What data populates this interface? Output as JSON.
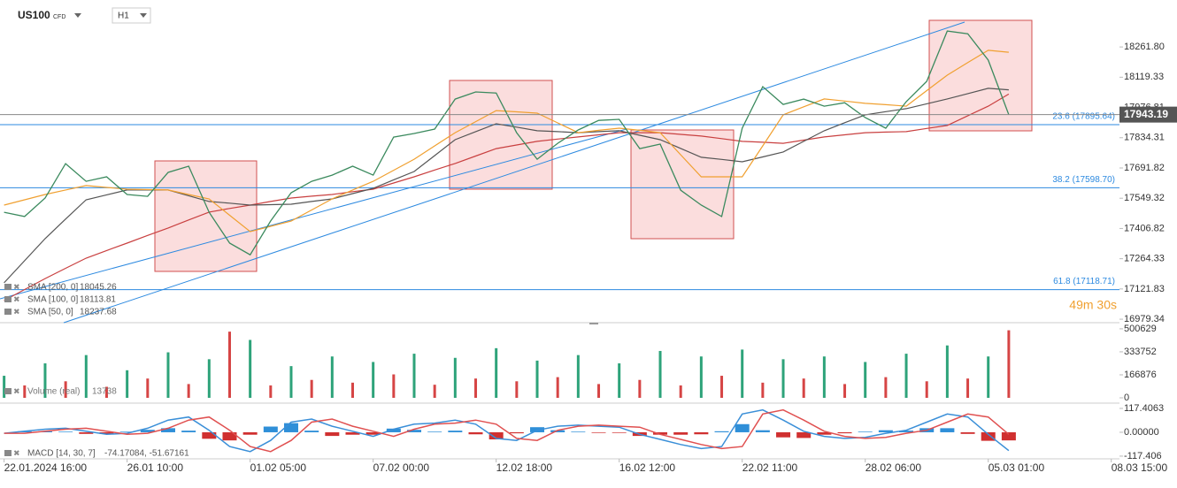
{
  "header": {
    "symbol": "US100",
    "symbol_type": "CFD",
    "timeframe": "H1"
  },
  "chart_data": [
    {
      "type": "line",
      "x": [
        0,
        15,
        30,
        45,
        60,
        75,
        90,
        105,
        120,
        135,
        150,
        165,
        180,
        195,
        210,
        225,
        240,
        255,
        270,
        285,
        300,
        315,
        330,
        345,
        360,
        375,
        390,
        405,
        420,
        435,
        450,
        465,
        480,
        495,
        510,
        525,
        540,
        555,
        570,
        585,
        600,
        615,
        630,
        645,
        660,
        675,
        690,
        705,
        720,
        735
      ],
      "xlim": [
        -3,
        816
      ],
      "xticks": [
        {
          "value": 0,
          "label": "22.01.2024 16:00"
        },
        {
          "value": 90,
          "label": "26.01 10:00"
        },
        {
          "value": 180,
          "label": "01.02 05:00"
        },
        {
          "value": 270,
          "label": "07.02 00:00"
        },
        {
          "value": 360,
          "label": "12.02 18:00"
        },
        {
          "value": 450,
          "label": "16.02 12:00"
        },
        {
          "value": 540,
          "label": "22.02 11:00"
        },
        {
          "value": 630,
          "label": "28.02 06:00"
        },
        {
          "value": 720,
          "label": "05.03 01:00"
        },
        {
          "value": 810,
          "label": "08.03 15:00"
        }
      ],
      "ylim": [
        16963,
        18483
      ],
      "yticks": [
        {
          "value": 18261.8,
          "label": "18261.80"
        },
        18119.33,
        17976.81,
        17834.31,
        17691.82,
        17549.32,
        17406.82,
        17264.33,
        17121.83,
        16979.34
      ],
      "series": [
        {
          "color": "#3b8a5e",
          "values": [
            17483,
            17463,
            17550,
            17712,
            17629,
            17650,
            17567,
            17558,
            17671,
            17700,
            17483,
            17338,
            17283,
            17442,
            17575,
            17629,
            17658,
            17700,
            17658,
            17837,
            17854,
            17875,
            18016,
            18050,
            18045,
            17858,
            17733,
            17808,
            17871,
            17916,
            17921,
            17783,
            17804,
            17587,
            17517,
            17463,
            17879,
            18075,
            17991,
            18016,
            17983,
            17999,
            17929,
            17879,
            18004,
            18100,
            18337,
            18324,
            18200,
            17943
          ]
        },
        {
          "name": "SMA [200, 0]",
          "legend_value": 18045.26,
          "color": "#c94040",
          "values": [
            17067,
            17119,
            17171,
            17219,
            17267,
            17303,
            17338,
            17374,
            17409,
            17447,
            17484,
            17501,
            17517,
            17534,
            17550,
            17559,
            17567,
            17580,
            17592,
            17621,
            17650,
            17682,
            17713,
            17748,
            17783,
            17800,
            17817,
            17828,
            17838,
            17848,
            17858,
            17858,
            17858,
            17850,
            17842,
            17830,
            17817,
            17813,
            17808,
            17823,
            17838,
            17848,
            17858,
            17861,
            17863,
            17878,
            17892,
            17938,
            17983,
            18040
          ]
        },
        {
          "name": "SMA [100, 0]",
          "legend_value": 18113.81,
          "color": "#555555",
          "values": [
            17151,
            17255,
            17359,
            17451,
            17542,
            17565,
            17588,
            17588,
            17588,
            17561,
            17534,
            17526,
            17517,
            17519,
            17521,
            17534,
            17546,
            17571,
            17596,
            17636,
            17675,
            17750,
            17825,
            17863,
            17900,
            17884,
            17867,
            17863,
            17858,
            17863,
            17867,
            17846,
            17825,
            17784,
            17742,
            17732,
            17721,
            17744,
            17767,
            17817,
            17867,
            17905,
            17942,
            17957,
            17971,
            17994,
            18017,
            18042,
            18067,
            18060
          ]
        },
        {
          "name": "SMA [50, 0]",
          "legend_value": 18237.68,
          "color": "#f0a030",
          "values": [
            17517,
            17542,
            17567,
            17588,
            17609,
            17600,
            17592,
            17590,
            17588,
            17567,
            17546,
            17469,
            17392,
            17417,
            17442,
            17494,
            17546,
            17588,
            17629,
            17681,
            17733,
            17796,
            17858,
            17910,
            17962,
            17956,
            17950,
            17904,
            17858,
            17869,
            17879,
            17869,
            17858,
            17754,
            17650,
            17650,
            17650,
            17796,
            17942,
            17980,
            18017,
            18007,
            17996,
            17990,
            17983,
            18056,
            18129,
            18188,
            18246,
            18237
          ]
        }
      ],
      "levels": [
        {
          "value": 17895.64,
          "label": "23.6 (17895.64)"
        },
        {
          "value": 17598.7,
          "label": "38.2 (17598.70)"
        },
        {
          "value": 17118.71,
          "label": "61.8 (17118.71)"
        }
      ],
      "level_color": "#2d8ae0",
      "last_price": 17943.19,
      "countdown": "49m 30s"
    },
    {
      "type": "bar",
      "title": "Volume (real)",
      "legend_value": 13738,
      "ylim": [
        -32000,
        545000
      ],
      "yticks": [
        500629,
        333752,
        166876,
        0
      ],
      "values": [
        160000,
        90000,
        250000,
        120000,
        310000,
        80000,
        200000,
        140000,
        330000,
        100000,
        280000,
        480000,
        420000,
        90000,
        230000,
        130000,
        300000,
        110000,
        260000,
        170000,
        320000,
        95000,
        290000,
        140000,
        360000,
        120000,
        270000,
        150000,
        310000,
        100000,
        250000,
        130000,
        340000,
        90000,
        300000,
        160000,
        350000,
        110000,
        280000,
        140000,
        300000,
        100000,
        260000,
        150000,
        320000,
        120000,
        380000,
        140000,
        300000,
        490000
      ],
      "colors": [
        "#2ea37a",
        "#d64545",
        "#2ea37a",
        "#d64545",
        "#2ea37a",
        "#d64545",
        "#2ea37a",
        "#d64545",
        "#2ea37a",
        "#d64545",
        "#2ea37a",
        "#d64545",
        "#2ea37a",
        "#d64545",
        "#2ea37a",
        "#d64545",
        "#2ea37a",
        "#d64545",
        "#2ea37a",
        "#d64545",
        "#2ea37a",
        "#d64545",
        "#2ea37a",
        "#d64545",
        "#2ea37a",
        "#d64545",
        "#2ea37a",
        "#d64545",
        "#2ea37a",
        "#d64545",
        "#2ea37a",
        "#d64545",
        "#2ea37a",
        "#d64545",
        "#2ea37a",
        "#d64545",
        "#2ea37a",
        "#d64545",
        "#2ea37a",
        "#d64545",
        "#2ea37a",
        "#d64545",
        "#2ea37a",
        "#d64545",
        "#2ea37a",
        "#d64545",
        "#2ea37a",
        "#d64545",
        "#2ea37a",
        "#d64545"
      ]
    },
    {
      "type": "macd",
      "title": "MACD [14, 30, 7]",
      "legend_text": "-74.17084, -51.67161",
      "ylim": [
        -135,
        139
      ],
      "yticks": [
        117.4063,
        {
          "value": 0,
          "label": "0.00000"
        },
        -117.406
      ],
      "series": [
        {
          "color": "#3a8fd8",
          "values": [
            -5,
            5,
            15,
            20,
            5,
            -10,
            -5,
            20,
            60,
            75,
            10,
            -70,
            -95,
            -40,
            50,
            65,
            30,
            5,
            -20,
            15,
            40,
            45,
            60,
            40,
            -30,
            -40,
            10,
            30,
            35,
            30,
            25,
            -10,
            -35,
            -60,
            -80,
            -70,
            90,
            110,
            60,
            5,
            -20,
            -30,
            -25,
            -5,
            10,
            50,
            90,
            75,
            -10,
            -90
          ]
        },
        {
          "color": "#e05050",
          "values": [
            -5,
            -5,
            5,
            15,
            20,
            5,
            -10,
            -5,
            20,
            60,
            75,
            10,
            -70,
            -95,
            -40,
            50,
            65,
            30,
            5,
            -20,
            15,
            40,
            45,
            60,
            40,
            -30,
            -40,
            10,
            30,
            35,
            30,
            25,
            -10,
            -35,
            -60,
            -80,
            -70,
            90,
            110,
            60,
            5,
            -20,
            -30,
            -25,
            -5,
            10,
            50,
            90,
            75,
            -10
          ]
        }
      ],
      "histogram": [
        0,
        5,
        5,
        3,
        -8,
        -8,
        3,
        12,
        20,
        8,
        -32,
        -40,
        -12,
        28,
        45,
        8,
        -18,
        -12,
        -12,
        18,
        12,
        3,
        8,
        -10,
        -35,
        -5,
        25,
        10,
        3,
        -3,
        -3,
        -18,
        -12,
        -12,
        -10,
        5,
        40,
        10,
        -25,
        -28,
        -12,
        -5,
        3,
        10,
        8,
        20,
        20,
        -8,
        -42,
        -40
      ],
      "histogram_colors": [
        "#2f8fd8",
        "#d03030"
      ]
    }
  ]
}
